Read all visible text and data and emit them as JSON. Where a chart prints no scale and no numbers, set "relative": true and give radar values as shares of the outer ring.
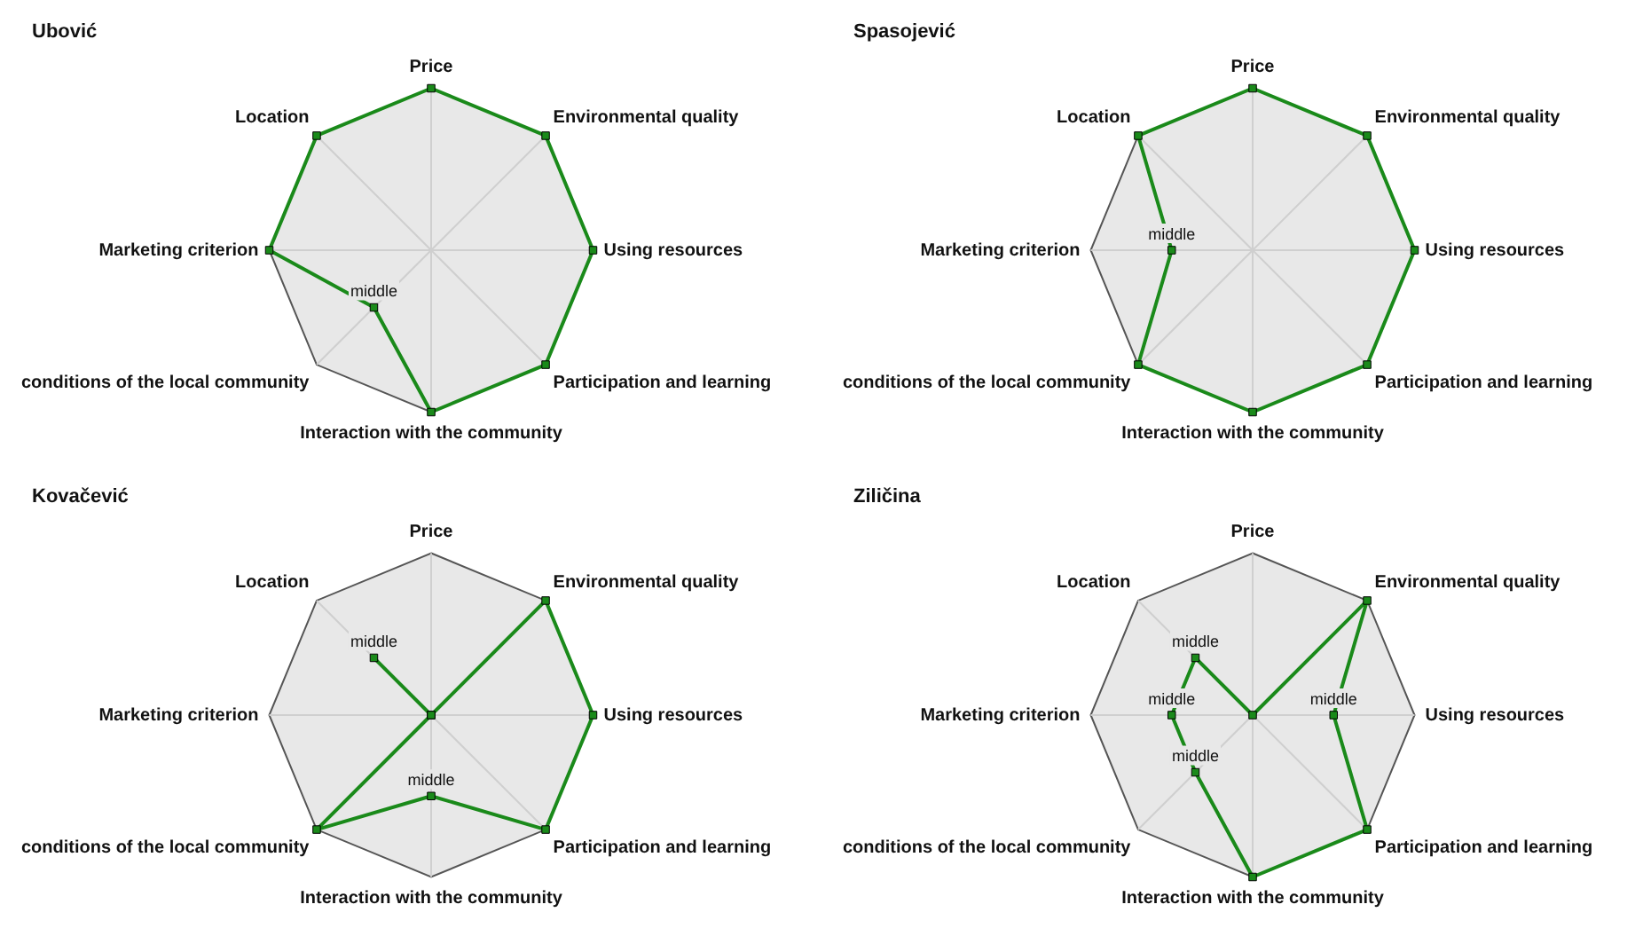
{
  "chart_data": [
    {
      "type": "radar",
      "title": "Ubović",
      "categories": [
        "Price",
        "Environmental quality",
        "Using resources",
        "Participation and learning",
        "Interaction with the community",
        "conditions of the local community",
        "Marketing criterion",
        "Location"
      ],
      "relative": true,
      "marker": "square",
      "grid": true,
      "legend": false,
      "series": [
        {
          "color": "#1a8a1a",
          "values": [
            1,
            1,
            1,
            1,
            1,
            0.5,
            1,
            1
          ]
        }
      ],
      "annotations": [
        {
          "text": "middle",
          "x": "conditions of the local community"
        }
      ]
    },
    {
      "type": "radar",
      "title": "Spasojević",
      "categories": [
        "Price",
        "Environmental quality",
        "Using resources",
        "Participation and learning",
        "Interaction with the community",
        "conditions of the local community",
        "Marketing criterion",
        "Location"
      ],
      "relative": true,
      "marker": "square",
      "grid": true,
      "legend": false,
      "series": [
        {
          "color": "#1a8a1a",
          "values": [
            1,
            1,
            1,
            1,
            1,
            1,
            0.5,
            1
          ]
        }
      ],
      "annotations": [
        {
          "text": "middle",
          "x": "Marketing criterion"
        }
      ]
    },
    {
      "type": "radar",
      "title": "Kovačević",
      "categories": [
        "Price",
        "Environmental quality",
        "Using resources",
        "Participation and learning",
        "Interaction with the community",
        "conditions of the local community",
        "Marketing criterion",
        "Location"
      ],
      "relative": true,
      "marker": "square",
      "grid": true,
      "legend": false,
      "series": [
        {
          "color": "#1a8a1a",
          "values": [
            0,
            1,
            1,
            1,
            0.5,
            1,
            0,
            0.5
          ]
        }
      ],
      "annotations": [
        {
          "text": "middle",
          "x": "Interaction with the community"
        },
        {
          "text": "middle",
          "x": "Location"
        }
      ]
    },
    {
      "type": "radar",
      "title": "Ziličina",
      "categories": [
        "Price",
        "Environmental quality",
        "Using resources",
        "Participation and learning",
        "Interaction with the community",
        "conditions of the local community",
        "Marketing criterion",
        "Location"
      ],
      "relative": true,
      "marker": "square",
      "grid": true,
      "legend": false,
      "series": [
        {
          "color": "#1a8a1a",
          "values": [
            0,
            1,
            0.5,
            1,
            1,
            0.5,
            0.5,
            0.5
          ]
        }
      ],
      "annotations": [
        {
          "text": "middle",
          "x": "Using resources"
        },
        {
          "text": "middle",
          "x": "conditions of the local community"
        },
        {
          "text": "middle",
          "x": "Marketing criterion"
        },
        {
          "text": "middle",
          "x": "Location"
        }
      ]
    }
  ]
}
